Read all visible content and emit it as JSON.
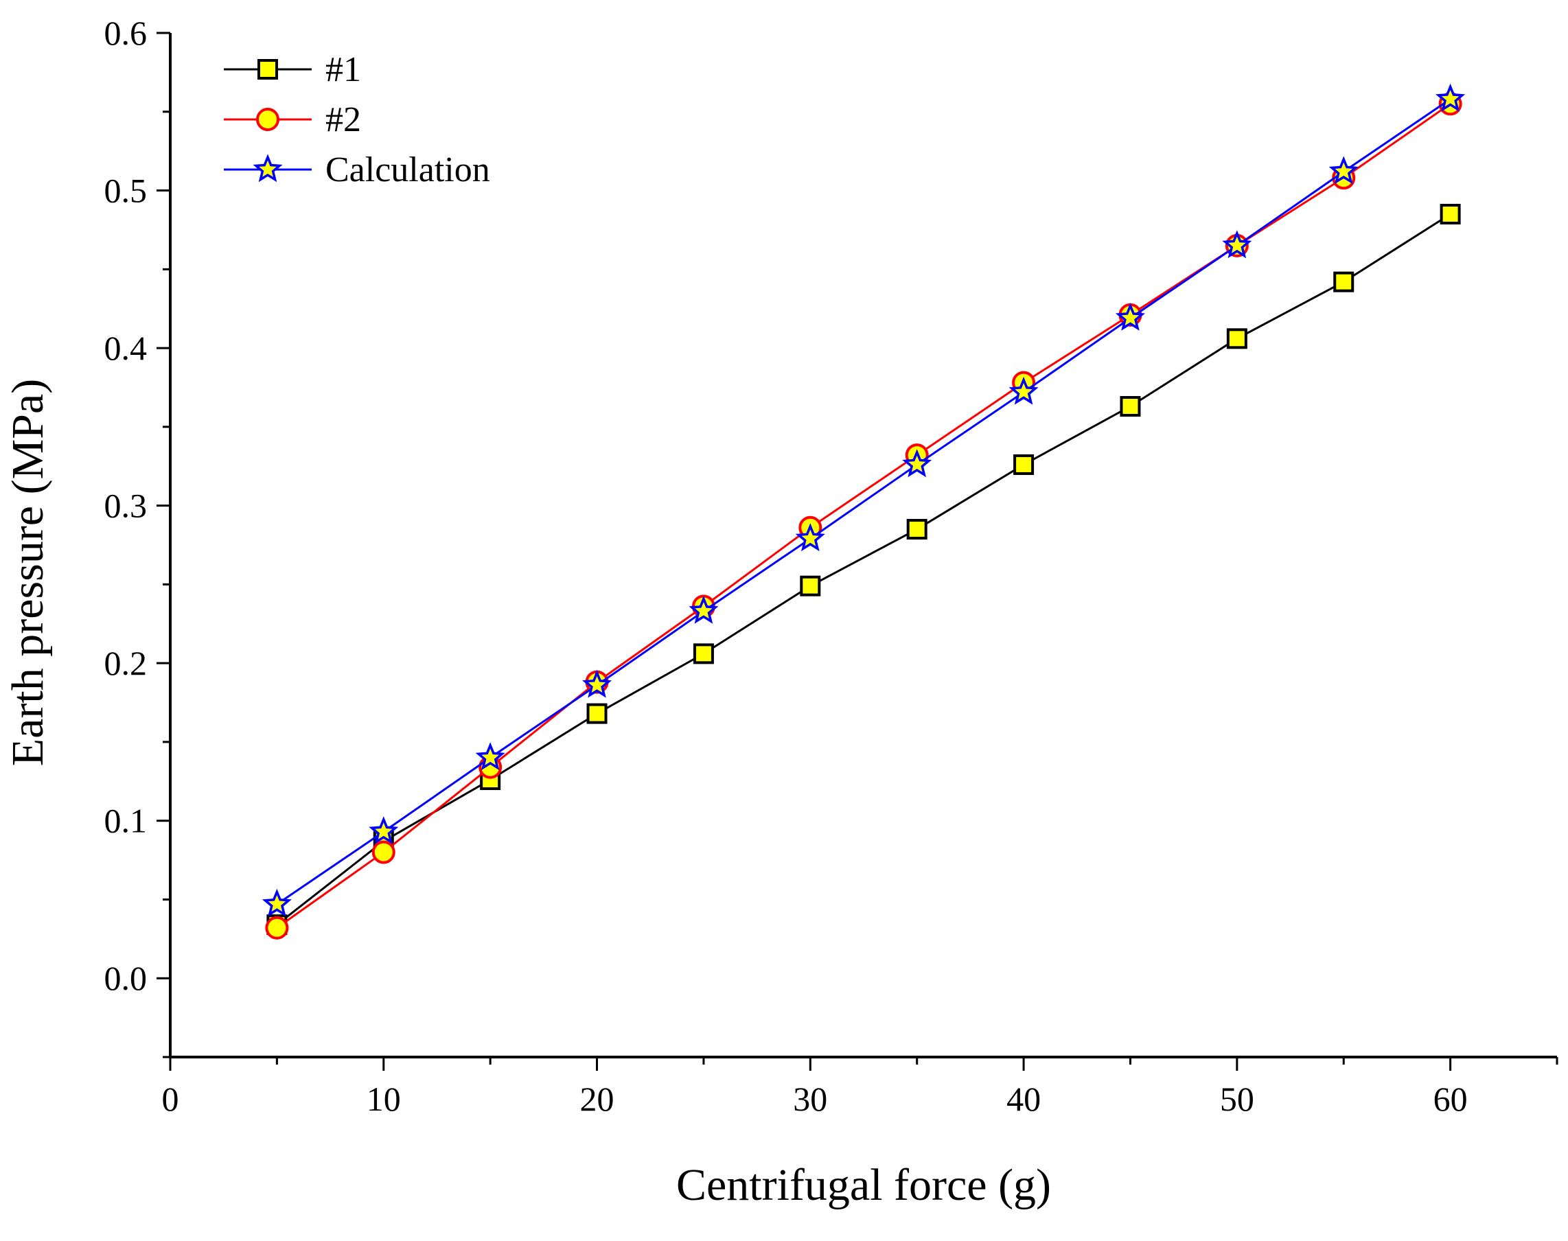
{
  "chart_data": {
    "type": "line",
    "title": "",
    "xlabel": "Centrifugal force (g)",
    "ylabel": "Earth pressure (MPa)",
    "xlim": [
      0,
      65
    ],
    "ylim": [
      -0.05,
      0.6
    ],
    "x_ticks": [
      0,
      10,
      20,
      30,
      40,
      50,
      60
    ],
    "x_tick_labels": [
      "0",
      "10",
      "20",
      "30",
      "40",
      "50",
      "60"
    ],
    "y_ticks": [
      0.0,
      0.1,
      0.2,
      0.3,
      0.4,
      0.5,
      0.6
    ],
    "y_tick_labels": [
      "0.0",
      "0.1",
      "0.2",
      "0.3",
      "0.4",
      "0.5",
      "0.6"
    ],
    "grid": false,
    "legend_position": "top-left",
    "x": [
      5,
      10,
      15,
      20,
      25,
      30,
      35,
      40,
      45,
      50,
      55,
      60
    ],
    "series": [
      {
        "name": "#1",
        "marker": "square",
        "line_color": "#000000",
        "marker_fill": "#ffff00",
        "marker_edge": "#000000",
        "values": [
          0.034,
          0.087,
          0.126,
          0.168,
          0.206,
          0.249,
          0.285,
          0.326,
          0.363,
          0.406,
          0.442,
          0.485
        ]
      },
      {
        "name": "#2",
        "marker": "circle",
        "line_color": "#ff0000",
        "marker_fill": "#ffff00",
        "marker_edge": "#ff0000",
        "values": [
          0.032,
          0.08,
          0.134,
          0.188,
          0.236,
          0.286,
          0.332,
          0.378,
          0.421,
          0.465,
          0.508,
          0.555
        ]
      },
      {
        "name": "Calculation",
        "marker": "star",
        "line_color": "#0000ff",
        "marker_fill": "#ffff00",
        "marker_edge": "#0000ff",
        "values": [
          0.047,
          0.093,
          0.14,
          0.186,
          0.233,
          0.279,
          0.326,
          0.372,
          0.419,
          0.465,
          0.512,
          0.558
        ]
      }
    ]
  }
}
